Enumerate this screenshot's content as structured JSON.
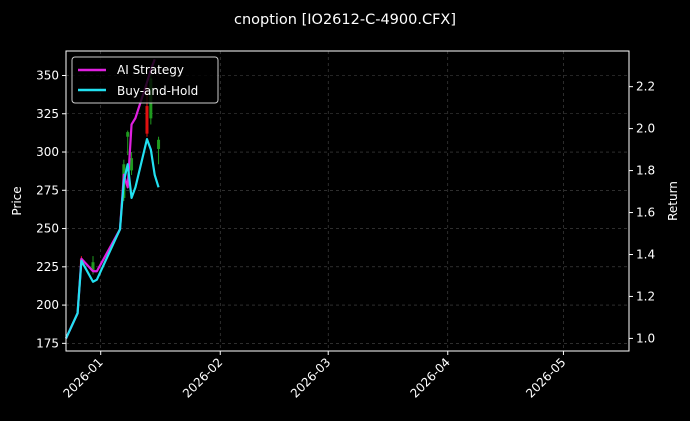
{
  "chart_data": {
    "type": "line",
    "title": "cnoption [IO2612-C-4900.CFX]",
    "ylabel_left": "Price",
    "ylabel_right": "Return",
    "xlabel": "",
    "x_ticks": [
      "2026-01",
      "2026-02",
      "2026-03",
      "2026-04",
      "2026-05"
    ],
    "y_left_ticks": [
      175,
      200,
      225,
      250,
      275,
      300,
      325,
      350
    ],
    "y_right_ticks": [
      "1.0",
      "1.2",
      "1.4",
      "1.6",
      "1.8",
      "2.0",
      "2.2"
    ],
    "x_range": [
      "2025-12-23",
      "2026-05-18"
    ],
    "ylim_left": [
      170,
      366
    ],
    "ylim_right": [
      0.94,
      2.37
    ],
    "grid": true,
    "legend_position": "top-left",
    "series": [
      {
        "name": "AI Strategy",
        "axis": "right",
        "color": "#e020e0",
        "points": [
          [
            "2025-12-23",
            1.0
          ],
          [
            "2025-12-26",
            1.12
          ],
          [
            "2025-12-27",
            1.38
          ],
          [
            "2025-12-30",
            1.32
          ],
          [
            "2025-12-31",
            1.32
          ],
          [
            "2026-01-06",
            1.52
          ],
          [
            "2026-01-07",
            1.78
          ],
          [
            "2026-01-08",
            1.72
          ],
          [
            "2026-01-09",
            2.02
          ],
          [
            "2026-01-10",
            2.05
          ],
          [
            "2026-01-13",
            2.22
          ],
          [
            "2026-01-14",
            2.28
          ],
          [
            "2026-01-15",
            2.33
          ]
        ]
      },
      {
        "name": "Buy-and-Hold",
        "axis": "right",
        "color": "#22e0f0",
        "points": [
          [
            "2025-12-23",
            1.0
          ],
          [
            "2025-12-26",
            1.12
          ],
          [
            "2025-12-27",
            1.37
          ],
          [
            "2025-12-30",
            1.27
          ],
          [
            "2025-12-31",
            1.28
          ],
          [
            "2026-01-06",
            1.52
          ],
          [
            "2026-01-07",
            1.75
          ],
          [
            "2026-01-08",
            1.83
          ],
          [
            "2026-01-09",
            1.67
          ],
          [
            "2026-01-10",
            1.72
          ],
          [
            "2026-01-13",
            1.95
          ],
          [
            "2026-01-14",
            1.9
          ],
          [
            "2026-01-15",
            1.78
          ],
          [
            "2026-01-16",
            1.72
          ]
        ]
      }
    ],
    "candles": [
      {
        "date": "2025-12-27",
        "open": 230,
        "close": 226,
        "high": 232,
        "low": 224
      },
      {
        "date": "2025-12-30",
        "open": 222,
        "close": 228,
        "high": 232,
        "low": 220
      },
      {
        "date": "2026-01-07",
        "open": 270,
        "close": 292,
        "high": 295,
        "low": 268
      },
      {
        "date": "2026-01-08",
        "open": 310,
        "close": 313,
        "high": 314,
        "low": 298
      },
      {
        "date": "2026-01-09",
        "open": 288,
        "close": 296,
        "high": 300,
        "low": 285
      },
      {
        "date": "2026-01-13",
        "open": 330,
        "close": 312,
        "high": 345,
        "low": 310
      },
      {
        "date": "2026-01-14",
        "open": 322,
        "close": 348,
        "high": 352,
        "low": 318
      },
      {
        "date": "2026-01-16",
        "open": 302,
        "close": 308,
        "high": 310,
        "low": 292
      }
    ],
    "colors": {
      "background": "#000000",
      "grid": "#4a4a4a",
      "axes": "#ffffff",
      "candle_up": "#1f9a1f",
      "candle_down": "#e01010"
    }
  }
}
